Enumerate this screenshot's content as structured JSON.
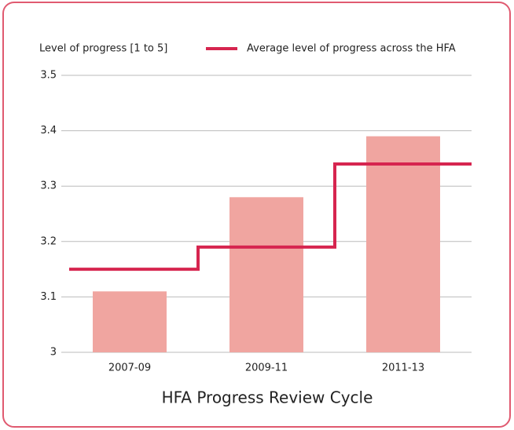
{
  "chart_data": {
    "type": "bar",
    "y_label": "Level of progress [1 to 5]",
    "x_label": "HFA Progress Review Cycle",
    "categories": [
      "2007-09",
      "2009-11",
      "2011-13"
    ],
    "series": [
      {
        "type": "bar",
        "color": "#f0a5a0",
        "values": [
          3.11,
          3.28,
          3.39
        ]
      },
      {
        "type": "step",
        "name": "Average level of progress across the HFA",
        "color": "#d6254f",
        "values": [
          3.15,
          3.19,
          3.34
        ]
      }
    ],
    "ylim": [
      3,
      3.5
    ],
    "yticks": [
      3,
      3.1,
      3.2,
      3.3,
      3.4,
      3.5
    ],
    "grid": true
  }
}
